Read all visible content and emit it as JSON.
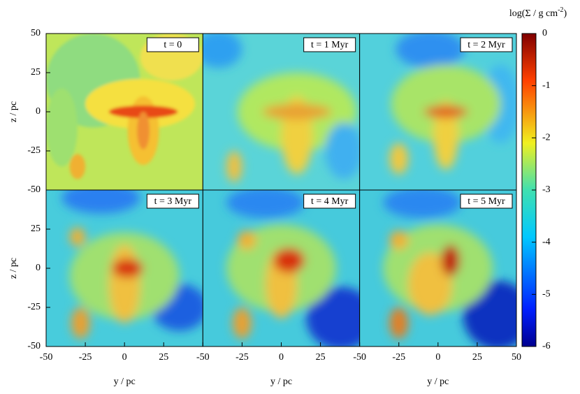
{
  "chart_data": [
    {
      "type": "heatmap",
      "title": "t = 0",
      "ylabel": "z / pc",
      "xlim": [
        -50,
        50
      ],
      "ylim": [
        -50,
        50
      ],
      "yticks": [
        -50,
        -25,
        0,
        25,
        50
      ]
    },
    {
      "type": "heatmap",
      "title": "t = 1 Myr",
      "xlim": [
        -50,
        50
      ],
      "ylim": [
        -50,
        50
      ]
    },
    {
      "type": "heatmap",
      "title": "t = 2 Myr",
      "xlim": [
        -50,
        50
      ],
      "ylim": [
        -50,
        50
      ]
    },
    {
      "type": "heatmap",
      "title": "t = 3 Myr",
      "xlabel": "y / pc",
      "ylabel": "z / pc",
      "xlim": [
        -50,
        50
      ],
      "ylim": [
        -50,
        50
      ],
      "xticks": [
        -50,
        -25,
        0,
        25
      ],
      "yticks": [
        -50,
        -25,
        0,
        25
      ]
    },
    {
      "type": "heatmap",
      "title": "t = 4 Myr",
      "xlabel": "y / pc",
      "xlim": [
        -50,
        50
      ],
      "ylim": [
        -50,
        50
      ],
      "xticks": [
        -50,
        -25,
        0,
        25
      ]
    },
    {
      "type": "heatmap",
      "title": "t = 5 Myr",
      "xlabel": "y / pc",
      "xlim": [
        -50,
        50
      ],
      "ylim": [
        -50,
        50
      ],
      "xticks": [
        -50,
        -25,
        0,
        25,
        50
      ]
    }
  ],
  "colorbar": {
    "label": [
      "log(Σ / g cm",
      "-2",
      ")"
    ],
    "lim": [
      -6,
      0
    ],
    "ticks": [
      0,
      -1,
      -2,
      -3,
      -4,
      -5,
      -6
    ]
  }
}
